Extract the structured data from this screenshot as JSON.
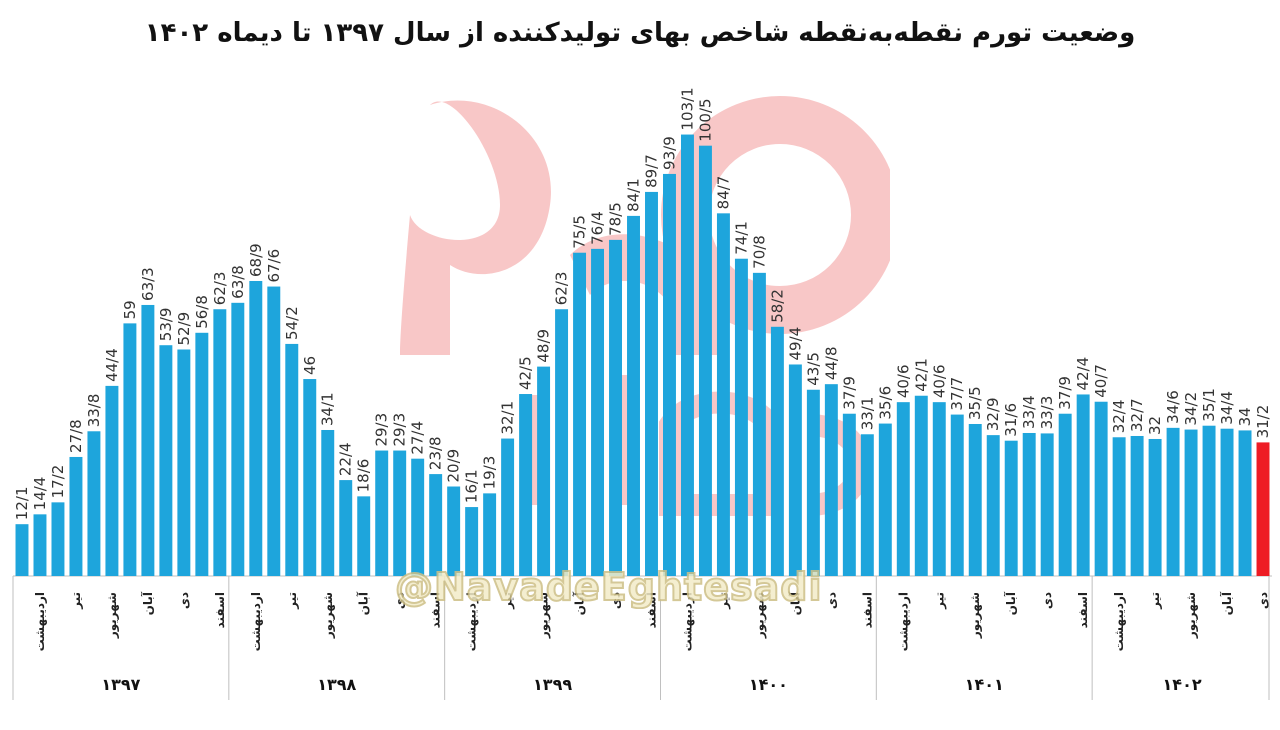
{
  "title": "وضعیت تورم نقطه‌به‌نقطه شاخص بهای تولیدکننده از سال ۱۳۹۷ تا دیماه ۱۴۰۲",
  "watermark": "@NavadeEghtesadi",
  "colors": {
    "bar": "#1ea5dc",
    "highlight": "#ee1c24",
    "grid": "#d9d9d9",
    "logo": "#f39a9a"
  },
  "chart_data": {
    "type": "bar",
    "ylim": [
      0,
      110
    ],
    "values": [
      "12/1",
      "14/4",
      "17/2",
      "27/8",
      "33/8",
      "44/4",
      "59",
      "63/3",
      "53/9",
      "52/9",
      "56/8",
      "62/3",
      "63/8",
      "68/9",
      "67/6",
      "54/2",
      "46",
      "34/1",
      "22/4",
      "18/6",
      "29/3",
      "29/3",
      "27/4",
      "23/8",
      "20/9",
      "16/1",
      "19/3",
      "32/1",
      "42/5",
      "48/9",
      "62/3",
      "75/5",
      "76/4",
      "78/5",
      "84/1",
      "89/7",
      "93/9",
      "103/1",
      "100/5",
      "84/7",
      "74/1",
      "70/8",
      "58/2",
      "49/4",
      "43/5",
      "44/8",
      "37/9",
      "33/1",
      "35/6",
      "40/6",
      "42/1",
      "40/6",
      "37/7",
      "35/5",
      "32/9",
      "31/6",
      "33/4",
      "33/3",
      "37/9",
      "42/4",
      "40/7",
      "32/4",
      "32/7",
      "32",
      "34/6",
      "34/2",
      "35/1",
      "34/4",
      "34",
      "31/2"
    ],
    "highlight_index": 69,
    "month_labels": [
      "",
      "اردیبهشت",
      "",
      "تیر",
      "",
      "شهریور",
      "",
      "آبان",
      "",
      "دی",
      "",
      "اسفند",
      "",
      "اردیبهشت",
      "",
      "تیر",
      "",
      "شهریور",
      "",
      "آبان",
      "",
      "دی",
      "",
      "اسفند",
      "",
      "اردیبهشت",
      "",
      "تیر",
      "",
      "شهریور",
      "",
      "آبان",
      "",
      "دی",
      "",
      "اسفند",
      "",
      "اردیبهشت",
      "",
      "تیر",
      "",
      "شهریور",
      "",
      "آبان",
      "",
      "دی",
      "",
      "اسفند",
      "",
      "اردیبهشت",
      "",
      "تیر",
      "",
      "شهریور",
      "",
      "آبان",
      "",
      "دی",
      "",
      "اسفند",
      "",
      "اردیبهشت",
      "",
      "تیر",
      "",
      "شهریور",
      "",
      "آبان",
      "",
      "دی"
    ],
    "groups": [
      {
        "label": "۱۳۹۷",
        "count": 12
      },
      {
        "label": "۱۳۹۸",
        "count": 12
      },
      {
        "label": "۱۳۹۹",
        "count": 12
      },
      {
        "label": "۱۴۰۰",
        "count": 12
      },
      {
        "label": "۱۴۰۱",
        "count": 12
      },
      {
        "label": "۱۴۰۲",
        "count": 10
      }
    ]
  }
}
